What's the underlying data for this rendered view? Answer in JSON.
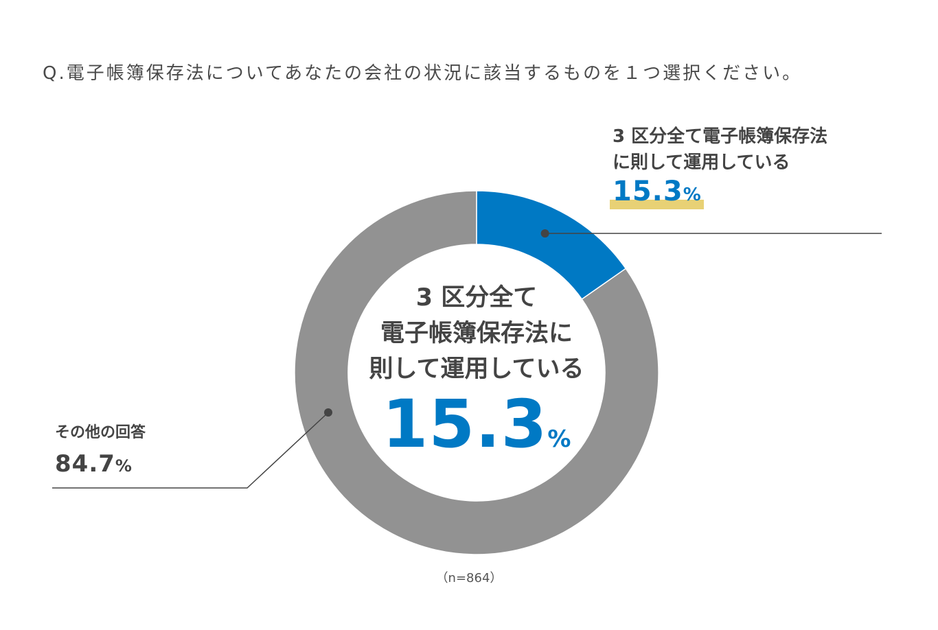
{
  "question": "Q.電子帳簿保存法についてあなたの会社の状況に該当するものを１つ選択ください。",
  "chart_data": {
    "type": "pie",
    "variant": "donut",
    "title": "Q.電子帳簿保存法についてあなたの会社の状況に該当するものを１つ選択ください。",
    "series": [
      {
        "name": "3 区分全て電子帳簿保存法に則して運用している",
        "name_lines": [
          "3 区分全て電子帳簿保存法",
          "に則して運用している"
        ],
        "value": 15.3,
        "value_label": "15.3",
        "color": "#0079c4"
      },
      {
        "name": "その他の回答",
        "value": 84.7,
        "value_label": "84.7",
        "color": "#929292"
      }
    ],
    "percent_symbol": "%",
    "center_lines": [
      "3 区分全て",
      "電子帳簿保存法に",
      "則して運用している"
    ],
    "center_value": "15.3",
    "sample_size": "（n=864）"
  },
  "colors": {
    "accent": "#0079c4",
    "other": "#929292",
    "highlight": "#e8d175",
    "leader": "#444444"
  }
}
